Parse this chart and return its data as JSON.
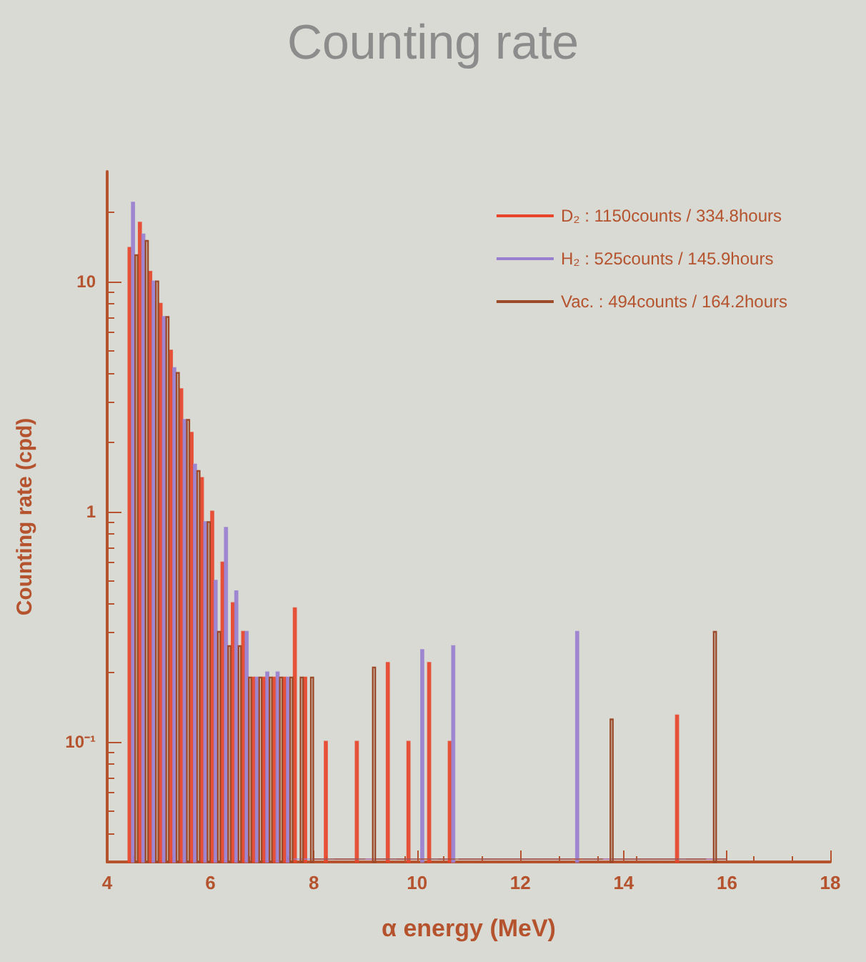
{
  "chart_data": {
    "type": "histogram",
    "title": "Counting rate",
    "xlabel": "α energy (MeV)",
    "ylabel": "Counting rate (cpd)",
    "bins": [
      4.4,
      4.6,
      4.8,
      5.0,
      5.2,
      5.4,
      5.6,
      5.8,
      6.0,
      6.2,
      6.4,
      6.6,
      6.8,
      7.0,
      7.2,
      7.4,
      7.6,
      7.8,
      8.0,
      8.2,
      8.4,
      8.6,
      8.8,
      9.0,
      9.2,
      9.4,
      9.6,
      9.8,
      10.0,
      10.2,
      10.4,
      10.6,
      10.8,
      11.0,
      11.2,
      11.4,
      11.6,
      11.8,
      12.0,
      12.2,
      12.4,
      12.6,
      12.8,
      13.0,
      13.2,
      13.4,
      13.6,
      13.8,
      14.0,
      14.2,
      14.4,
      14.6,
      14.8,
      15.0,
      15.2,
      15.4,
      15.6,
      15.8,
      16.0
    ],
    "series": [
      {
        "name": "D₂ : 1150counts / 334.8hours",
        "color": "#e8452c",
        "values": [
          14,
          18,
          11,
          8,
          5,
          3.4,
          2.2,
          1.4,
          1.0,
          0.6,
          0.4,
          0.3,
          0.19,
          0.19,
          0.19,
          0.19,
          0.38,
          0.19,
          null,
          0.1,
          null,
          null,
          0.1,
          null,
          null,
          0.22,
          null,
          0.1,
          null,
          0.22,
          null,
          0.1,
          null,
          null,
          null,
          null,
          null,
          null,
          null,
          null,
          null,
          null,
          null,
          null,
          null,
          null,
          null,
          null,
          null,
          null,
          null,
          null,
          null,
          0.13,
          null,
          null,
          null,
          null
        ]
      },
      {
        "name": "H₂ : 525counts / 145.9hours",
        "color": "#9a7fd0",
        "values": [
          22,
          16,
          10,
          7,
          4.2,
          2.5,
          1.6,
          0.9,
          0.5,
          0.85,
          0.45,
          0.3,
          0.19,
          0.2,
          0.2,
          0.19,
          null,
          null,
          null,
          null,
          null,
          null,
          null,
          null,
          null,
          null,
          null,
          null,
          0.25,
          null,
          null,
          0.26,
          null,
          null,
          null,
          null,
          null,
          null,
          null,
          null,
          null,
          null,
          null,
          0.3,
          null,
          null,
          null,
          null,
          null,
          null,
          null,
          null,
          null,
          null,
          null,
          null,
          null,
          null
        ]
      },
      {
        "name": "Vac. : 494counts / 164.2hours",
        "color": "#9c4a2a",
        "values": [
          13,
          15,
          10,
          7,
          4,
          2.5,
          1.5,
          0.9,
          0.3,
          0.26,
          0.26,
          0.19,
          0.19,
          0.19,
          0.19,
          0.19,
          0.19,
          0.19,
          null,
          null,
          null,
          null,
          null,
          0.21,
          null,
          null,
          null,
          null,
          null,
          null,
          null,
          null,
          null,
          null,
          null,
          null,
          null,
          null,
          null,
          null,
          null,
          null,
          null,
          null,
          null,
          null,
          0.125,
          null,
          null,
          null,
          null,
          null,
          null,
          null,
          null,
          null,
          0.3,
          null
        ]
      }
    ],
    "xlim": [
      4,
      18
    ],
    "xticks": [
      4,
      6,
      8,
      10,
      12,
      14,
      16,
      18
    ],
    "ylim": [
      0.03,
      30
    ],
    "yticks": [
      {
        "value": 0.1,
        "label": "10⁻¹"
      },
      1,
      10
    ],
    "log": "y",
    "legend": "top right"
  }
}
